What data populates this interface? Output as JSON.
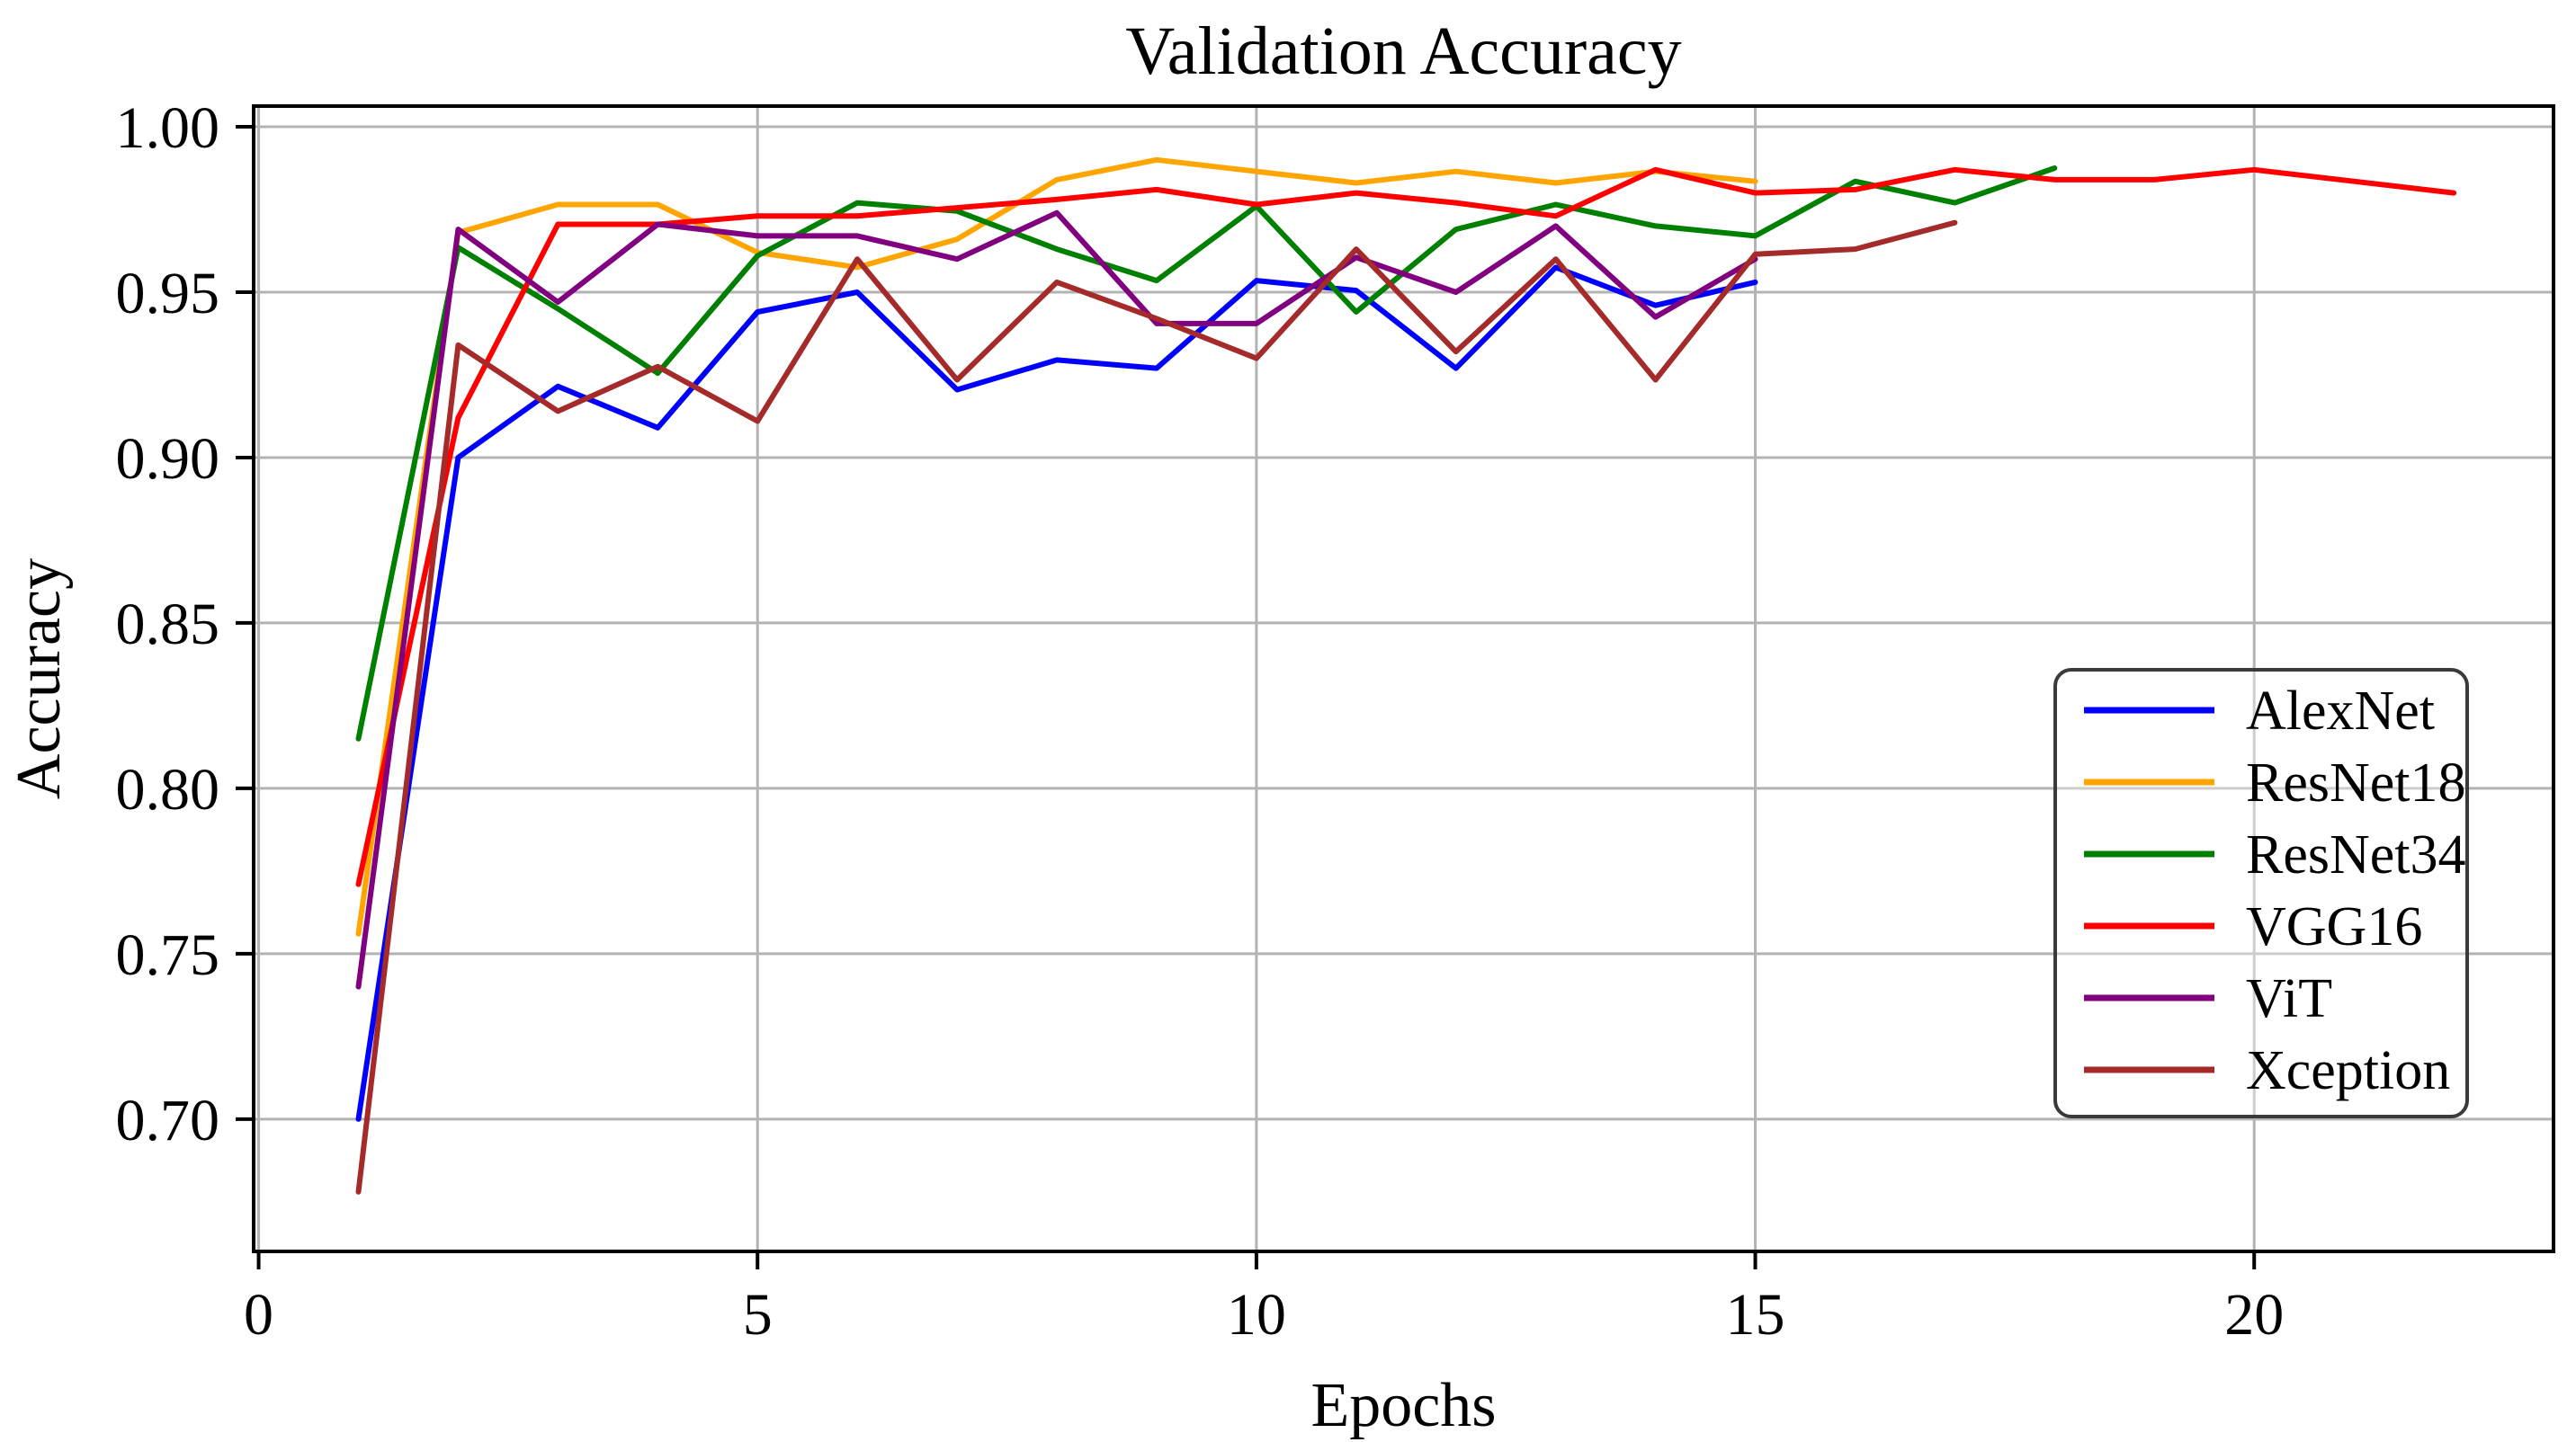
{
  "chart_data": {
    "type": "line",
    "title": "Validation Accuracy",
    "xlabel": "Epochs",
    "ylabel": "Accuracy",
    "grid": true,
    "background_color": "#ffffff",
    "grid_color": "#b3b3b3",
    "spine_color": "#000000",
    "legend_position": "right-center",
    "legend_border_color": "#3a3a3a",
    "xlim": [
      -0.05,
      23.0
    ],
    "ylim": [
      0.66,
      1.00625
    ],
    "x_ticks": [
      0,
      5,
      10,
      15,
      20
    ],
    "x_tick_labels": [
      "0",
      "5",
      "10",
      "15",
      "20"
    ],
    "y_ticks": [
      0.7,
      0.75,
      0.8,
      0.85,
      0.9,
      0.95,
      1.0
    ],
    "y_tick_labels": [
      "0.70",
      "0.75",
      "0.80",
      "0.85",
      "0.90",
      "0.95",
      "1.00"
    ],
    "series": [
      {
        "name": "AlexNet",
        "color": "#0000ff",
        "x": [
          1,
          2,
          3,
          4,
          5,
          6,
          7,
          8,
          9,
          10,
          11,
          12,
          13,
          14,
          15
        ],
        "values": [
          0.7,
          0.9,
          0.9215,
          0.909,
          0.944,
          0.95,
          0.9205,
          0.9295,
          0.927,
          0.9535,
          0.9505,
          0.927,
          0.9575,
          0.946,
          0.953
        ]
      },
      {
        "name": "ResNet18",
        "color": "#ffa500",
        "x": [
          1,
          2,
          3,
          4,
          5,
          6,
          7,
          8,
          9,
          10,
          11,
          12,
          13,
          14,
          15
        ],
        "values": [
          0.756,
          0.968,
          0.9765,
          0.9765,
          0.962,
          0.9575,
          0.966,
          0.984,
          0.99,
          0.9865,
          0.983,
          0.9865,
          0.983,
          0.9865,
          0.9835
        ]
      },
      {
        "name": "ResNet34",
        "color": "#008000",
        "x": [
          1,
          2,
          3,
          4,
          5,
          6,
          7,
          8,
          9,
          10,
          11,
          12,
          13,
          14,
          15,
          16,
          17,
          18
        ],
        "values": [
          0.815,
          0.9635,
          0.945,
          0.9255,
          0.961,
          0.977,
          0.9745,
          0.963,
          0.9535,
          0.976,
          0.944,
          0.969,
          0.9765,
          0.97,
          0.967,
          0.9835,
          0.977,
          0.9875
        ]
      },
      {
        "name": "VGG16",
        "color": "#ff0000",
        "x": [
          1,
          2,
          3,
          4,
          5,
          6,
          7,
          8,
          9,
          10,
          11,
          12,
          13,
          14,
          15,
          16,
          17,
          18,
          19,
          20,
          21,
          22
        ],
        "values": [
          0.771,
          0.912,
          0.9705,
          0.9705,
          0.973,
          0.973,
          0.9755,
          0.978,
          0.981,
          0.9765,
          0.98,
          0.977,
          0.973,
          0.987,
          0.98,
          0.981,
          0.987,
          0.984,
          0.984,
          0.987,
          0.9835,
          0.98
        ]
      },
      {
        "name": "ViT",
        "color": "#800080",
        "x": [
          1,
          2,
          3,
          4,
          5,
          6,
          7,
          8,
          9,
          10,
          11,
          12,
          13,
          14,
          15
        ],
        "values": [
          0.74,
          0.969,
          0.947,
          0.9705,
          0.967,
          0.967,
          0.96,
          0.974,
          0.9405,
          0.9405,
          0.9605,
          0.95,
          0.97,
          0.9425,
          0.96
        ]
      },
      {
        "name": "Xception",
        "color": "#a52a2a",
        "x": [
          1,
          2,
          3,
          4,
          5,
          6,
          7,
          8,
          9,
          10,
          11,
          12,
          13,
          14,
          15,
          16,
          17
        ],
        "values": [
          0.678,
          0.934,
          0.914,
          0.9275,
          0.911,
          0.96,
          0.9235,
          0.953,
          0.942,
          0.93,
          0.963,
          0.932,
          0.96,
          0.9235,
          0.9615,
          0.963,
          0.971
        ]
      }
    ]
  }
}
